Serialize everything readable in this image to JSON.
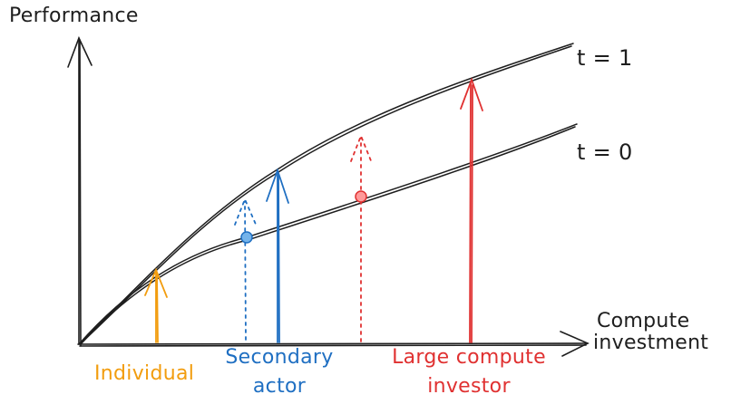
{
  "axes": {
    "y_label": "Performance",
    "x_label_line1": "Compute",
    "x_label_line2": "investment"
  },
  "curves": {
    "upper": "t = 1",
    "lower": "t = 0"
  },
  "actors": {
    "individual": {
      "label": "Individual",
      "color": "#f29d0f"
    },
    "secondary": {
      "line1": "Secondary",
      "line2": "actor",
      "color": "#1f6fc2"
    },
    "large": {
      "line1": "Large compute",
      "line2": "investor",
      "color": "#e03131"
    }
  },
  "colors": {
    "ink": "#1e1e1e"
  }
}
